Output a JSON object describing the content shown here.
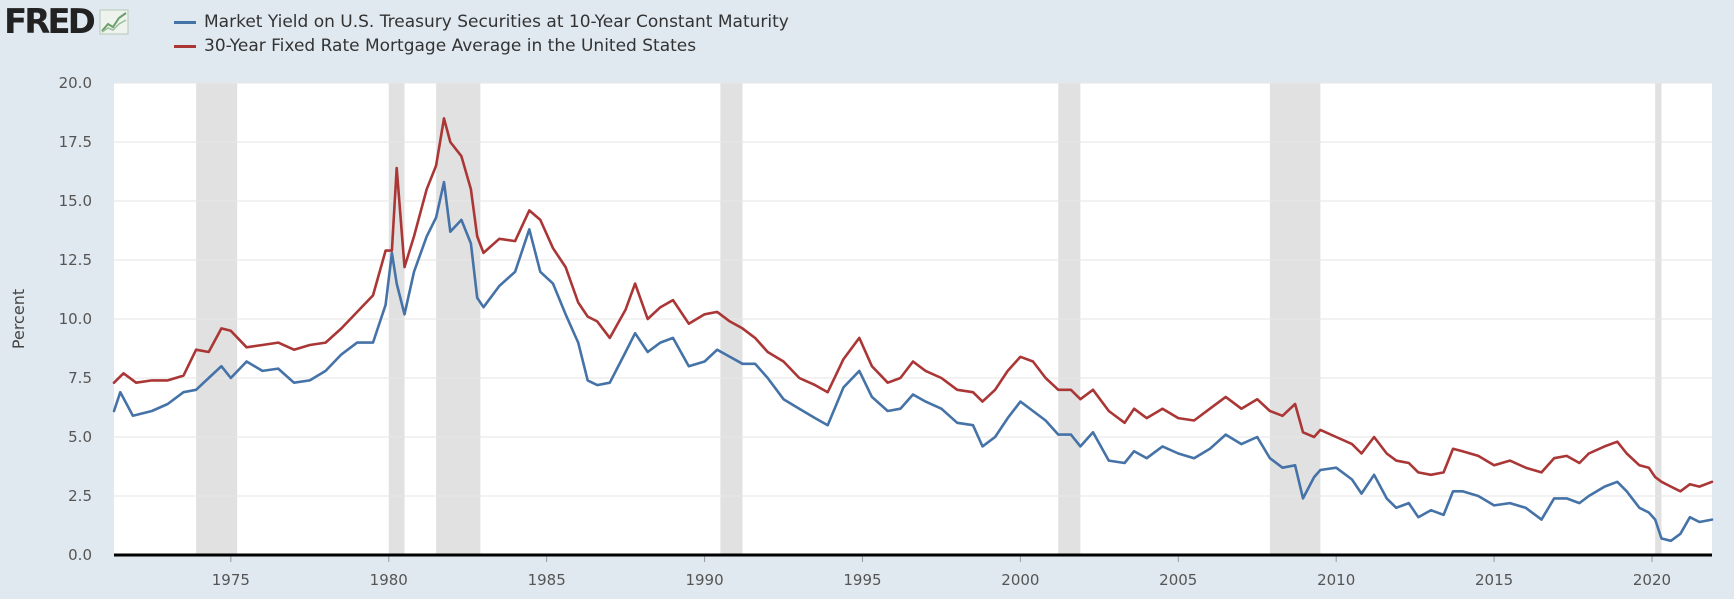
{
  "logo": {
    "text": "FRED"
  },
  "chart_data": {
    "type": "line",
    "title": "",
    "xlabel": "",
    "ylabel": "Percent",
    "xlim": [
      1971.3,
      2021.9
    ],
    "ylim": [
      0,
      20
    ],
    "y_ticks": [
      "0.0",
      "2.5",
      "5.0",
      "7.5",
      "10.0",
      "12.5",
      "15.0",
      "17.5",
      "20.0"
    ],
    "x_ticks": [
      "1975",
      "1980",
      "1985",
      "1990",
      "1995",
      "2000",
      "2005",
      "2010",
      "2015",
      "2020"
    ],
    "grid": true,
    "legend_position": "top-left",
    "recessions": [
      [
        1973.9,
        1975.2
      ],
      [
        1980.0,
        1980.5
      ],
      [
        1981.5,
        1982.9
      ],
      [
        1990.5,
        1991.2
      ],
      [
        2001.2,
        2001.9
      ],
      [
        2007.9,
        2009.5
      ],
      [
        2020.1,
        2020.3
      ]
    ],
    "series": [
      {
        "name": "Market Yield on U.S. Treasury Securities at 10-Year Constant Maturity",
        "color": "#4572a7",
        "x": [
          1971.3,
          1971.5,
          1971.9,
          1972.5,
          1973.0,
          1973.5,
          1973.9,
          1974.3,
          1974.7,
          1975.0,
          1975.5,
          1976.0,
          1976.5,
          1977.0,
          1977.5,
          1978.0,
          1978.5,
          1979.0,
          1979.5,
          1979.9,
          1980.1,
          1980.25,
          1980.5,
          1980.8,
          1981.2,
          1981.5,
          1981.75,
          1981.95,
          1982.3,
          1982.6,
          1982.8,
          1983.0,
          1983.5,
          1984.0,
          1984.45,
          1984.8,
          1985.2,
          1985.6,
          1986.0,
          1986.3,
          1986.6,
          1987.0,
          1987.5,
          1987.8,
          1988.2,
          1988.6,
          1989.0,
          1989.5,
          1990.0,
          1990.4,
          1990.8,
          1991.2,
          1991.6,
          1992.0,
          1992.5,
          1993.0,
          1993.5,
          1993.9,
          1994.4,
          1994.9,
          1995.3,
          1995.8,
          1996.2,
          1996.6,
          1997.0,
          1997.5,
          1998.0,
          1998.5,
          1998.8,
          1999.2,
          1999.6,
          2000.0,
          2000.4,
          2000.8,
          2001.2,
          2001.6,
          2001.9,
          2002.3,
          2002.8,
          2003.3,
          2003.6,
          2004.0,
          2004.5,
          2005.0,
          2005.5,
          2006.0,
          2006.5,
          2007.0,
          2007.5,
          2007.9,
          2008.3,
          2008.7,
          2008.95,
          2009.3,
          2009.5,
          2010.0,
          2010.5,
          2010.8,
          2011.2,
          2011.6,
          2011.9,
          2012.3,
          2012.6,
          2013.0,
          2013.4,
          2013.7,
          2014.0,
          2014.5,
          2015.0,
          2015.5,
          2016.0,
          2016.5,
          2016.9,
          2017.3,
          2017.7,
          2018.0,
          2018.5,
          2018.9,
          2019.2,
          2019.6,
          2019.9,
          2020.1,
          2020.3,
          2020.6,
          2020.9,
          2021.2,
          2021.5,
          2021.9
        ],
        "values": [
          6.1,
          6.9,
          5.9,
          6.1,
          6.4,
          6.9,
          7.0,
          7.5,
          8.0,
          7.5,
          8.2,
          7.8,
          7.9,
          7.3,
          7.4,
          7.8,
          8.5,
          9.0,
          9.0,
          10.6,
          12.8,
          11.5,
          10.2,
          12.0,
          13.5,
          14.3,
          15.8,
          13.7,
          14.2,
          13.2,
          10.9,
          10.5,
          11.4,
          12.0,
          13.8,
          12.0,
          11.5,
          10.2,
          9.0,
          7.4,
          7.2,
          7.3,
          8.6,
          9.4,
          8.6,
          9.0,
          9.2,
          8.0,
          8.2,
          8.7,
          8.4,
          8.1,
          8.1,
          7.5,
          6.6,
          6.2,
          5.8,
          5.5,
          7.1,
          7.8,
          6.7,
          6.1,
          6.2,
          6.8,
          6.5,
          6.2,
          5.6,
          5.5,
          4.6,
          5.0,
          5.8,
          6.5,
          6.1,
          5.7,
          5.1,
          5.1,
          4.6,
          5.2,
          4.0,
          3.9,
          4.4,
          4.1,
          4.6,
          4.3,
          4.1,
          4.5,
          5.1,
          4.7,
          5.0,
          4.1,
          3.7,
          3.8,
          2.4,
          3.3,
          3.6,
          3.7,
          3.2,
          2.6,
          3.4,
          2.4,
          2.0,
          2.2,
          1.6,
          1.9,
          1.7,
          2.7,
          2.7,
          2.5,
          2.1,
          2.2,
          2.0,
          1.5,
          2.4,
          2.4,
          2.2,
          2.5,
          2.9,
          3.1,
          2.7,
          2.0,
          1.8,
          1.5,
          0.7,
          0.6,
          0.9,
          1.6,
          1.4,
          1.5
        ]
      },
      {
        "name": "30-Year Fixed Rate Mortgage Average in the United States",
        "color": "#aa3636",
        "x": [
          1971.3,
          1971.6,
          1972.0,
          1972.5,
          1973.0,
          1973.5,
          1973.9,
          1974.3,
          1974.7,
          1975.0,
          1975.5,
          1976.0,
          1976.5,
          1977.0,
          1977.5,
          1978.0,
          1978.5,
          1979.0,
          1979.5,
          1979.9,
          1980.1,
          1980.25,
          1980.5,
          1980.8,
          1981.2,
          1981.5,
          1981.75,
          1981.95,
          1982.3,
          1982.6,
          1982.8,
          1983.0,
          1983.5,
          1984.0,
          1984.45,
          1984.8,
          1985.2,
          1985.6,
          1986.0,
          1986.3,
          1986.6,
          1987.0,
          1987.5,
          1987.8,
          1988.2,
          1988.6,
          1989.0,
          1989.5,
          1990.0,
          1990.4,
          1990.8,
          1991.2,
          1991.6,
          1992.0,
          1992.5,
          1993.0,
          1993.5,
          1993.9,
          1994.4,
          1994.9,
          1995.3,
          1995.8,
          1996.2,
          1996.6,
          1997.0,
          1997.5,
          1998.0,
          1998.5,
          1998.8,
          1999.2,
          1999.6,
          2000.0,
          2000.4,
          2000.8,
          2001.2,
          2001.6,
          2001.9,
          2002.3,
          2002.8,
          2003.3,
          2003.6,
          2004.0,
          2004.5,
          2005.0,
          2005.5,
          2006.0,
          2006.5,
          2007.0,
          2007.5,
          2007.9,
          2008.3,
          2008.7,
          2008.95,
          2009.3,
          2009.5,
          2010.0,
          2010.5,
          2010.8,
          2011.2,
          2011.6,
          2011.9,
          2012.3,
          2012.6,
          2013.0,
          2013.4,
          2013.7,
          2014.0,
          2014.5,
          2015.0,
          2015.5,
          2016.0,
          2016.5,
          2016.9,
          2017.3,
          2017.7,
          2018.0,
          2018.5,
          2018.9,
          2019.2,
          2019.6,
          2019.9,
          2020.1,
          2020.3,
          2020.6,
          2020.9,
          2021.2,
          2021.5,
          2021.9
        ],
        "values": [
          7.3,
          7.7,
          7.3,
          7.4,
          7.4,
          7.6,
          8.7,
          8.6,
          9.6,
          9.5,
          8.8,
          8.9,
          9.0,
          8.7,
          8.9,
          9.0,
          9.6,
          10.3,
          11.0,
          12.9,
          12.9,
          16.4,
          12.2,
          13.5,
          15.5,
          16.5,
          18.5,
          17.5,
          16.9,
          15.5,
          13.5,
          12.8,
          13.4,
          13.3,
          14.6,
          14.2,
          13.0,
          12.2,
          10.7,
          10.1,
          9.9,
          9.2,
          10.4,
          11.5,
          10.0,
          10.5,
          10.8,
          9.8,
          10.2,
          10.3,
          9.9,
          9.6,
          9.2,
          8.6,
          8.2,
          7.5,
          7.2,
          6.9,
          8.3,
          9.2,
          8.0,
          7.3,
          7.5,
          8.2,
          7.8,
          7.5,
          7.0,
          6.9,
          6.5,
          7.0,
          7.8,
          8.4,
          8.2,
          7.5,
          7.0,
          7.0,
          6.6,
          7.0,
          6.1,
          5.6,
          6.2,
          5.8,
          6.2,
          5.8,
          5.7,
          6.2,
          6.7,
          6.2,
          6.6,
          6.1,
          5.9,
          6.4,
          5.2,
          5.0,
          5.3,
          5.0,
          4.7,
          4.3,
          5.0,
          4.3,
          4.0,
          3.9,
          3.5,
          3.4,
          3.5,
          4.5,
          4.4,
          4.2,
          3.8,
          4.0,
          3.7,
          3.5,
          4.1,
          4.2,
          3.9,
          4.3,
          4.6,
          4.8,
          4.3,
          3.8,
          3.7,
          3.3,
          3.1,
          2.9,
          2.7,
          3.0,
          2.9,
          3.1
        ]
      }
    ]
  }
}
